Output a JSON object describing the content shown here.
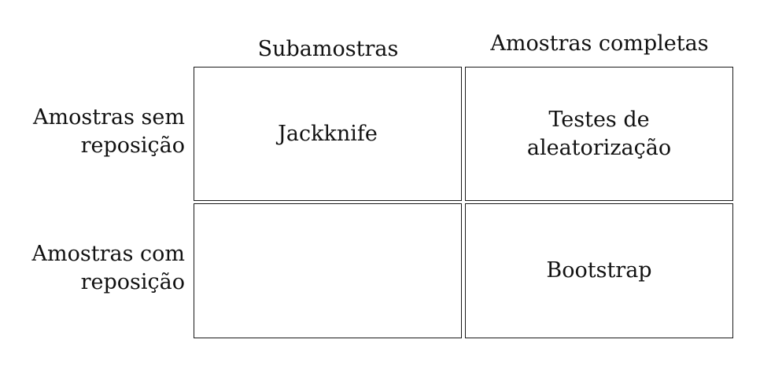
{
  "columns": [
    "Subamostras",
    "Amostras completas"
  ],
  "rows": [
    {
      "label": "Amostras sem reposição",
      "cells": [
        "Jackknife",
        "Testes de aleatorização"
      ]
    },
    {
      "label": "Amostras com reposição",
      "cells": [
        "",
        "Bootstrap"
      ]
    }
  ]
}
